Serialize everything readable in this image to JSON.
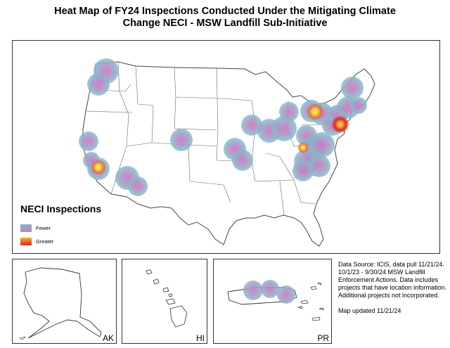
{
  "title": {
    "line1": "Heat Map of FY24 Inspections Conducted Under the Mitigating Climate",
    "line2": "Change NECI - MSW Landfill Sub-Initiative"
  },
  "legend": {
    "title": "NECI Inspections",
    "low_label": "Fewer",
    "high_label": "Greater",
    "low_colors": [
      "#8ab4c7",
      "#c47fbf"
    ],
    "high_colors": [
      "#f2b233",
      "#d9272a"
    ]
  },
  "insets": {
    "ak": "AK",
    "hi": "HI",
    "pr": "PR"
  },
  "notes": {
    "source": "Data Source: ICIS, data pull 11/21/24.",
    "detail": "10/1/23 - 9/30/24 MSW Landfill Enforcement Actions. Data includes projects that have location information. Additional projects not incorporated.",
    "updated": "Map updated 11/21/24"
  },
  "colors": {
    "outer": "#8ab4c7",
    "mid": "#c47fbf",
    "hot_yellow": "#ffd84a",
    "hot_orange": "#f28a2e",
    "hot_red": "#d9272a",
    "outline": "#444444"
  }
}
